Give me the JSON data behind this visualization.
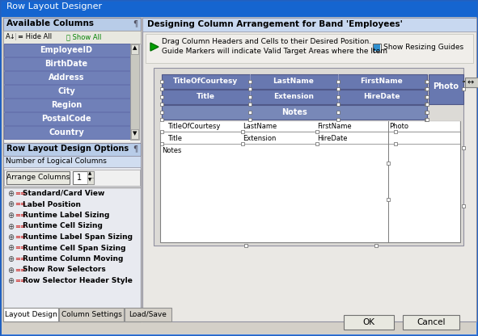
{
  "title": "Row Layout Designer",
  "title_bg": "#1565d0",
  "title_fg": "#ffffff",
  "dialog_bg": "#d4d0c8",
  "left_panel_header": "Available Columns",
  "left_panel_header_bg": "#b8cce8",
  "columns_list": [
    "EmployeeID",
    "BirthDate",
    "Address",
    "City",
    "Region",
    "PostalCode",
    "Country"
  ],
  "column_item_bg": "#7080b8",
  "column_item_fg": "#ffffff",
  "right_panel_title": "Designing Column Arrangement for Band 'Employees'",
  "right_panel_bg": "#eae8e4",
  "checkbox_label": "Show Resizing Guides",
  "header_bg": "#6878b0",
  "header_fg": "#ffffff",
  "notes_bg": "#7888b8",
  "data_area_bg": "#ffffff",
  "options_header": "Row Layout Design Options",
  "num_logical_cols_label": "Number of Logical Columns",
  "arrange_btn": "Arrange Columns",
  "spin_val": "1",
  "options_list": [
    "Standard/Card View",
    "Label Position",
    "Runtime Label Sizing",
    "Runtime Cell Sizing",
    "Runtime Label Span Sizing",
    "Runtime Cell Span Sizing",
    "Runtime Column Moving",
    "Show Row Selectors",
    "Row Selector Header Style"
  ],
  "tabs": [
    "Layout Design",
    "Column Settings",
    "Load/Save"
  ],
  "btn_ok": "OK",
  "btn_cancel": "Cancel",
  "outer_border_top": "#3070e0",
  "outer_border": "#1050c0"
}
